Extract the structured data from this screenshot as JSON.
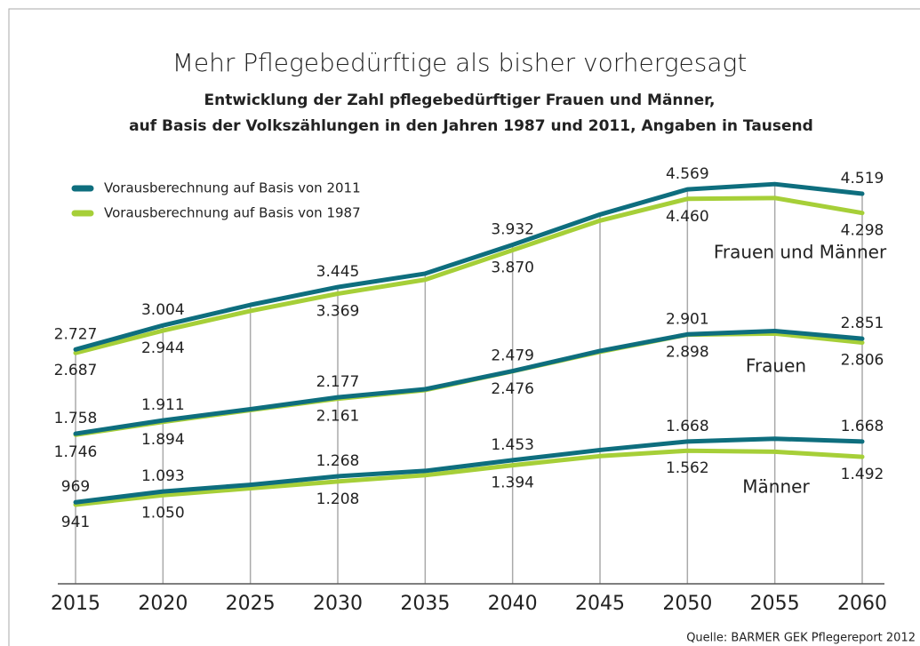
{
  "chart_data": {
    "type": "line",
    "title": "Mehr Pflegebedürftige als bisher vorhergesagt",
    "subtitle": [
      "Entwicklung der Zahl pflegebedürftiger Frauen und Männer,",
      "auf Basis der Volkszählungen in den Jahren 1987 und 2011, Angaben in Tausend"
    ],
    "source": "Quelle: BARMER GEK Pflegereport 2012",
    "categories": [
      "2015",
      "2020",
      "2025",
      "2030",
      "2035",
      "2040",
      "2045",
      "2050",
      "2055",
      "2060"
    ],
    "ylim": [
      0,
      5000
    ],
    "groups": [
      {
        "label": "Frauen und Männer",
        "series": [
          {
            "name": "Vorausberechnung auf Basis von 2011",
            "color": "#0e6e7e",
            "values": [
              2727,
              3004,
              3240,
              3445,
              3600,
              3932,
              4280,
              4569,
              4630,
              4519
            ],
            "value_labels": [
              "2.727",
              "3.004",
              null,
              "3.445",
              null,
              "3.932",
              null,
              "4.569",
              null,
              "4.519"
            ]
          },
          {
            "name": "Vorausberechnung auf Basis von 1987",
            "color": "#a6cf38",
            "values": [
              2687,
              2944,
              3170,
              3369,
              3530,
              3870,
              4210,
              4460,
              4470,
              4298
            ],
            "value_labels": [
              "2.687",
              "2.944",
              null,
              "3.369",
              null,
              "3.870",
              null,
              "4.460",
              null,
              "4.298"
            ]
          }
        ]
      },
      {
        "label": "Frauen",
        "series": [
          {
            "name": "Vorausberechnung auf Basis von 2011",
            "color": "#0e6e7e",
            "values": [
              1758,
              1911,
              2040,
              2177,
              2270,
              2479,
              2710,
              2901,
              2940,
              2851
            ],
            "value_labels": [
              "1.758",
              "1.911",
              null,
              "2.177",
              null,
              "2.479",
              null,
              "2.901",
              null,
              "2.851"
            ]
          },
          {
            "name": "Vorausberechnung auf Basis von 1987",
            "color": "#a6cf38",
            "values": [
              1746,
              1894,
              2030,
              2161,
              2260,
              2476,
              2700,
              2898,
              2910,
              2806
            ],
            "value_labels": [
              "1.746",
              "1.894",
              null,
              "2.161",
              null,
              "2.476",
              null,
              "2.898",
              null,
              "2.806"
            ]
          }
        ]
      },
      {
        "label": "Männer",
        "series": [
          {
            "name": "Vorausberechnung auf Basis von 2011",
            "color": "#0e6e7e",
            "values": [
              969,
              1093,
              1170,
              1268,
              1330,
              1453,
              1570,
              1668,
              1700,
              1668
            ],
            "value_labels": [
              969,
              "1.093",
              null,
              "1.268",
              null,
              "1.453",
              null,
              "1.668",
              null,
              "1.668"
            ]
          },
          {
            "name": "Vorausberechnung auf Basis von 1987",
            "color": "#a6cf38",
            "values": [
              941,
              1050,
              1130,
              1208,
              1280,
              1394,
              1500,
              1562,
              1550,
              1492
            ],
            "value_labels": [
              941,
              "1.050",
              null,
              "1.208",
              null,
              "1.394",
              null,
              "1.562",
              null,
              "1.492"
            ]
          }
        ]
      }
    ]
  }
}
